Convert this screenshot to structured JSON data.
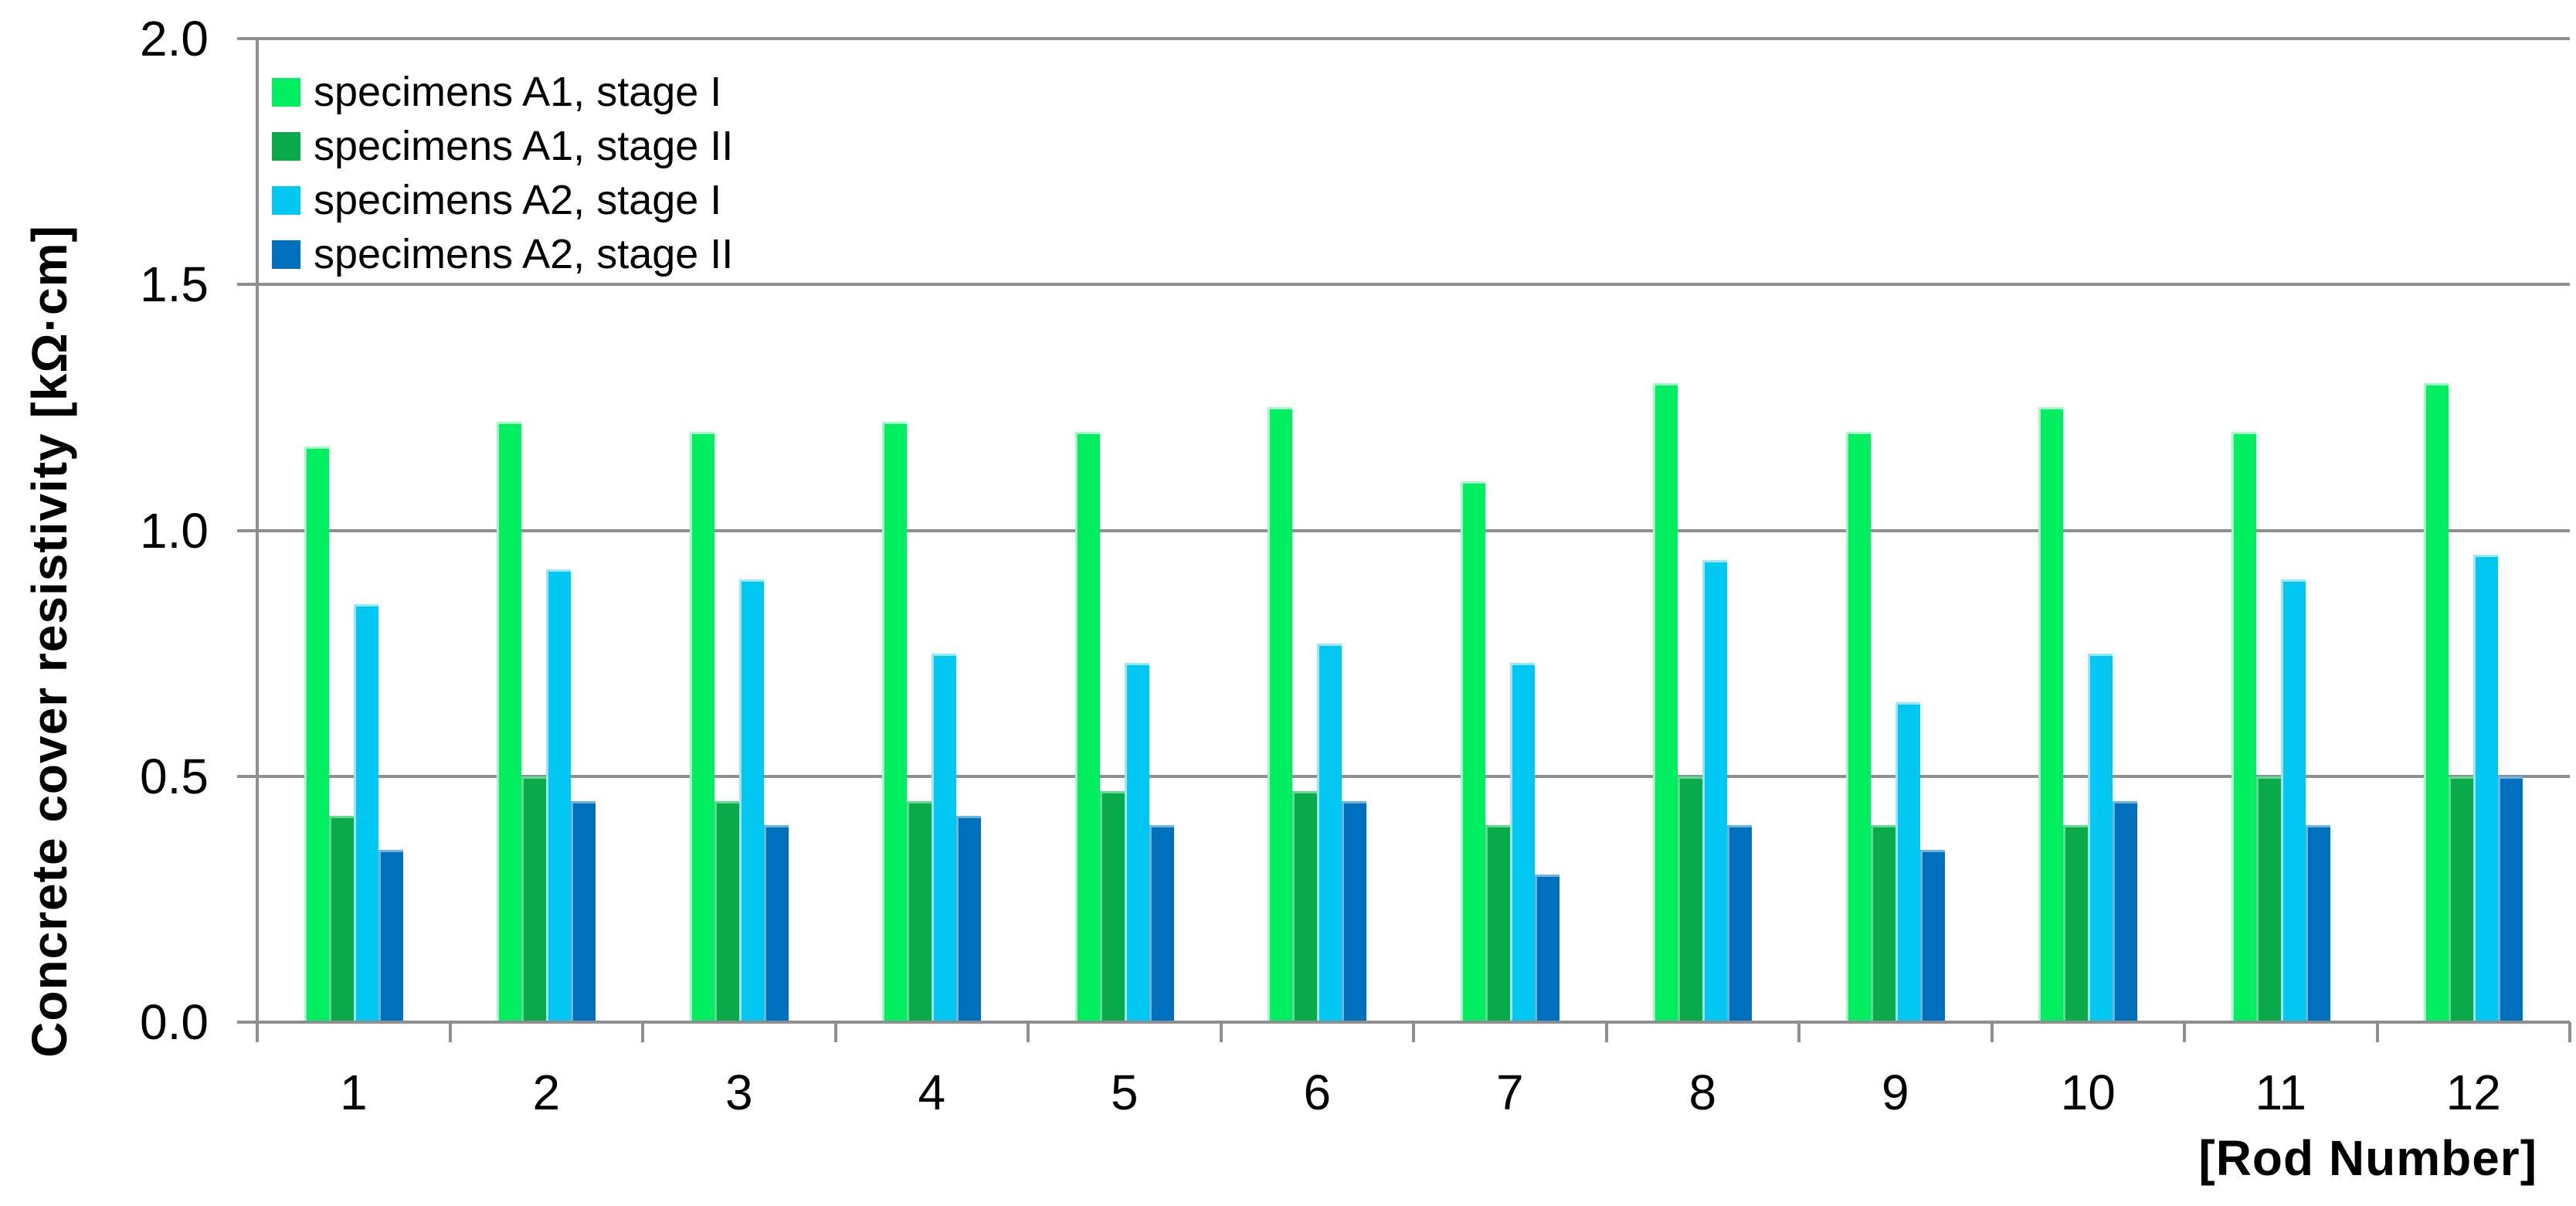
{
  "chart_data": {
    "type": "bar",
    "title": "",
    "ylabel": "Concrete cover resistivity [kΩ·cm]",
    "xlabel": "[Rod Number]",
    "categories": [
      "1",
      "2",
      "3",
      "4",
      "5",
      "6",
      "7",
      "8",
      "9",
      "10",
      "11",
      "12"
    ],
    "ylim": [
      0.0,
      2.0
    ],
    "y_ticks": [
      2.0,
      1.5,
      1.0,
      0.5,
      0.0
    ],
    "y_tick_labels": [
      "2.0",
      "1.5",
      "1.0",
      "0.5",
      "0.0"
    ],
    "grid": true,
    "legend_position": "top-left-inside",
    "series": [
      {
        "name": "specimens A1, stage I",
        "color": "#00EE5F",
        "edge_highlight": "#9CFFC4",
        "values": [
          1.17,
          1.22,
          1.2,
          1.22,
          1.2,
          1.25,
          1.1,
          1.3,
          1.2,
          1.25,
          1.2,
          1.3
        ]
      },
      {
        "name": "specimens A1, stage II",
        "color": "#0AAA4A",
        "edge_highlight": "#66D695",
        "values": [
          0.42,
          0.5,
          0.45,
          0.45,
          0.47,
          0.47,
          0.4,
          0.5,
          0.4,
          0.4,
          0.5,
          0.5
        ]
      },
      {
        "name": "specimens A2, stage I",
        "color": "#00C8F2",
        "edge_highlight": "#97E8FB",
        "values": [
          0.85,
          0.92,
          0.9,
          0.75,
          0.73,
          0.77,
          0.73,
          0.94,
          0.65,
          0.75,
          0.9,
          0.95
        ]
      },
      {
        "name": "specimens A2, stage II",
        "color": "#0070BC",
        "edge_highlight": "#6FB3DC",
        "values": [
          0.35,
          0.45,
          0.4,
          0.42,
          0.4,
          0.45,
          0.3,
          0.4,
          0.35,
          0.45,
          0.4,
          0.5
        ]
      }
    ]
  },
  "style": {
    "grid_color": "#8F8F8F",
    "text_color": "#000000",
    "background": "#FFFFFF"
  }
}
